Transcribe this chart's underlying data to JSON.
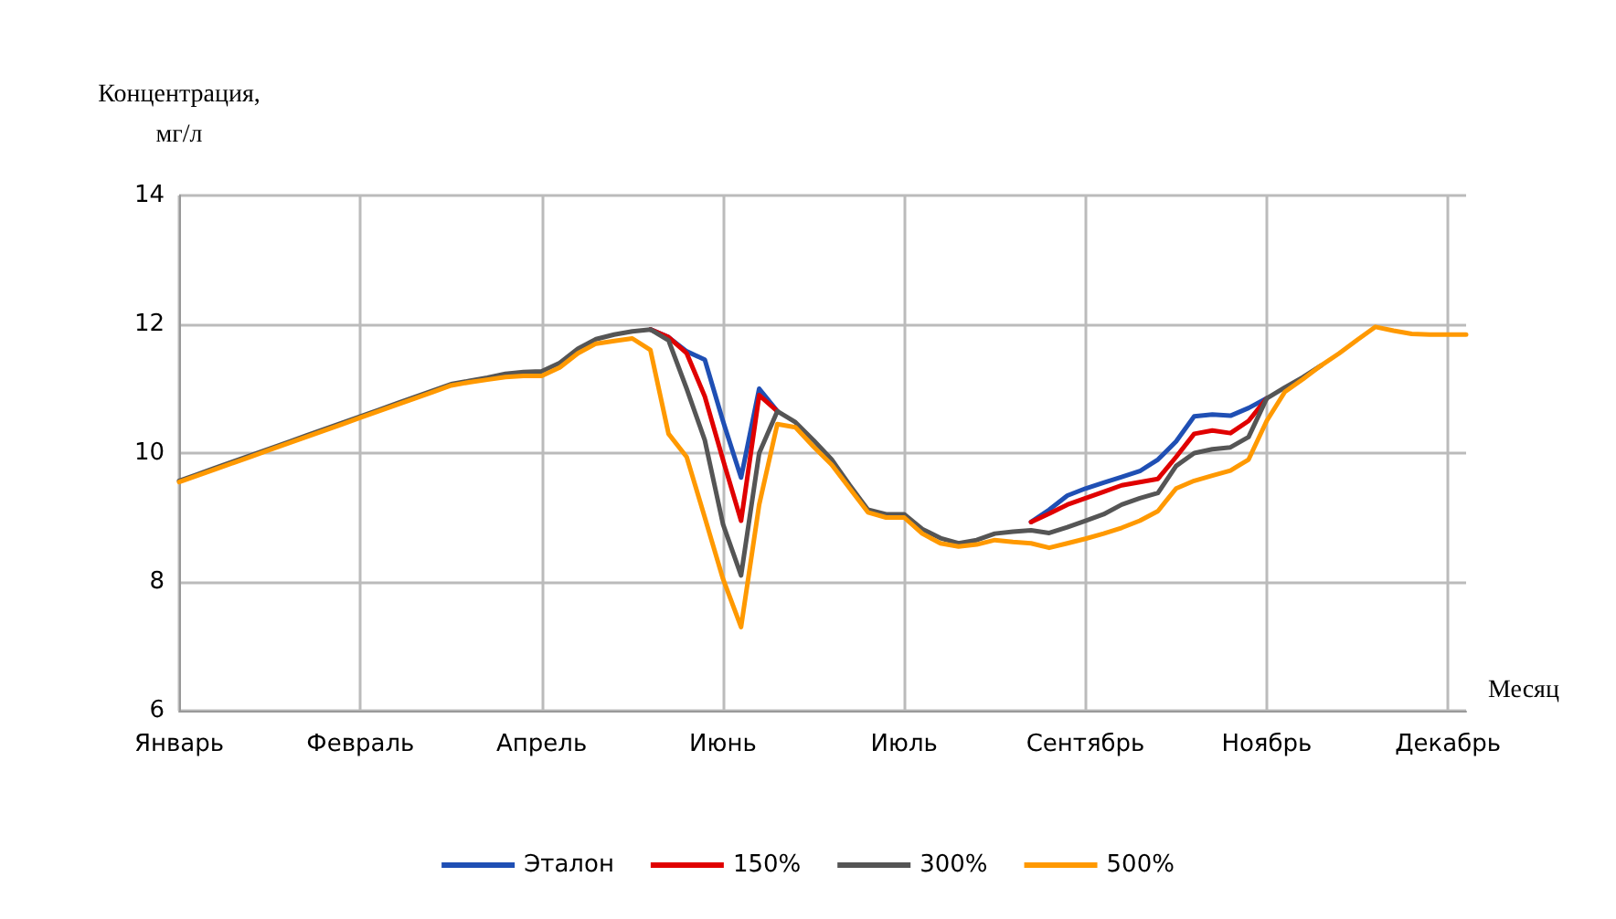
{
  "chart_data": {
    "type": "line",
    "xlabel": "Месяц",
    "ylabel": "Концентрация,\nмг/л",
    "categories": [
      "Январь",
      null,
      null,
      null,
      null,
      null,
      null,
      null,
      null,
      null,
      "Февраль",
      null,
      null,
      null,
      null,
      null,
      null,
      null,
      null,
      null,
      "Апрель",
      null,
      null,
      null,
      null,
      null,
      null,
      null,
      null,
      null,
      "Июнь",
      null,
      null,
      null,
      null,
      null,
      null,
      null,
      null,
      null,
      "Июль",
      null,
      null,
      null,
      null,
      null,
      null,
      null,
      null,
      null,
      "Сентябрь",
      null,
      null,
      null,
      null,
      null,
      null,
      null,
      null,
      null,
      "Ноябрь",
      null,
      null,
      null,
      null,
      null,
      null,
      null,
      null,
      null,
      "Декабрь",
      null
    ],
    "ylim": [
      6,
      14
    ],
    "yticks": [
      6,
      8,
      10,
      12,
      14
    ],
    "grid": true,
    "legend": "bottom",
    "marker": "none",
    "line_style": "solid",
    "series": [
      {
        "name": "Эталон",
        "color": "#1f4fb4",
        "values": [
          null,
          null,
          null,
          null,
          null,
          null,
          null,
          null,
          null,
          null,
          null,
          null,
          null,
          null,
          null,
          null,
          null,
          null,
          null,
          null,
          null,
          null,
          null,
          null,
          null,
          null,
          11.92,
          11.8,
          11.58,
          11.45,
          10.5,
          9.62,
          11.0,
          10.65,
          null,
          null,
          null,
          null,
          null,
          null,
          null,
          null,
          null,
          null,
          null,
          null,
          null,
          8.93,
          9.12,
          9.34,
          9.45,
          9.54,
          9.63,
          9.72,
          9.9,
          10.18,
          10.57,
          10.6,
          10.58,
          10.7,
          10.85,
          null,
          null,
          null,
          null,
          null,
          null,
          null,
          null,
          null,
          null,
          null
        ]
      },
      {
        "name": "150%",
        "color": "#e00000",
        "values": [
          null,
          null,
          null,
          null,
          null,
          null,
          null,
          null,
          null,
          null,
          null,
          null,
          null,
          null,
          null,
          null,
          null,
          null,
          null,
          null,
          null,
          null,
          null,
          null,
          null,
          null,
          11.92,
          11.8,
          11.55,
          10.88,
          9.9,
          8.95,
          10.9,
          10.65,
          null,
          null,
          null,
          null,
          null,
          null,
          null,
          null,
          null,
          null,
          null,
          null,
          null,
          8.93,
          9.06,
          9.2,
          9.3,
          9.4,
          9.5,
          9.55,
          9.6,
          9.94,
          10.3,
          10.35,
          10.31,
          10.5,
          10.85,
          null,
          null,
          null,
          null,
          null,
          null,
          null,
          null,
          null,
          null,
          null
        ]
      },
      {
        "name": "300%",
        "color": "#555555",
        "values": [
          9.57,
          9.67,
          9.77,
          9.87,
          9.97,
          10.07,
          10.17,
          10.27,
          10.37,
          10.47,
          10.57,
          10.67,
          10.77,
          10.87,
          10.97,
          11.07,
          11.12,
          11.17,
          11.23,
          11.26,
          11.27,
          11.4,
          11.62,
          11.77,
          11.84,
          11.89,
          11.92,
          11.75,
          11.0,
          10.2,
          8.9,
          8.1,
          10.0,
          10.65,
          10.48,
          10.2,
          9.9,
          9.5,
          9.12,
          9.05,
          9.05,
          8.82,
          8.68,
          8.6,
          8.65,
          8.75,
          8.78,
          8.8,
          8.76,
          8.85,
          8.95,
          9.05,
          9.2,
          9.3,
          9.38,
          9.8,
          10.0,
          10.06,
          10.09,
          10.25,
          10.85,
          11.02,
          11.18,
          11.36,
          null,
          null,
          null,
          null,
          null,
          null,
          null,
          null
        ]
      },
      {
        "name": "500%",
        "color": "#ff9900",
        "values": [
          9.55,
          9.65,
          9.75,
          9.85,
          9.95,
          10.05,
          10.15,
          10.25,
          10.35,
          10.45,
          10.55,
          10.65,
          10.75,
          10.85,
          10.95,
          11.05,
          11.1,
          11.14,
          11.18,
          11.2,
          11.2,
          11.33,
          11.55,
          11.7,
          11.74,
          11.78,
          11.6,
          10.3,
          9.94,
          9.0,
          8.05,
          7.3,
          9.2,
          10.45,
          10.4,
          10.1,
          9.82,
          9.45,
          9.08,
          9.0,
          9.0,
          8.75,
          8.6,
          8.55,
          8.58,
          8.65,
          8.62,
          8.6,
          8.53,
          8.6,
          8.67,
          8.75,
          8.84,
          8.95,
          9.1,
          9.45,
          9.57,
          9.65,
          9.73,
          9.9,
          10.5,
          10.95,
          11.15,
          11.36,
          11.55,
          11.76,
          11.96,
          11.9,
          11.85,
          11.84,
          11.84,
          11.84
        ]
      }
    ]
  }
}
